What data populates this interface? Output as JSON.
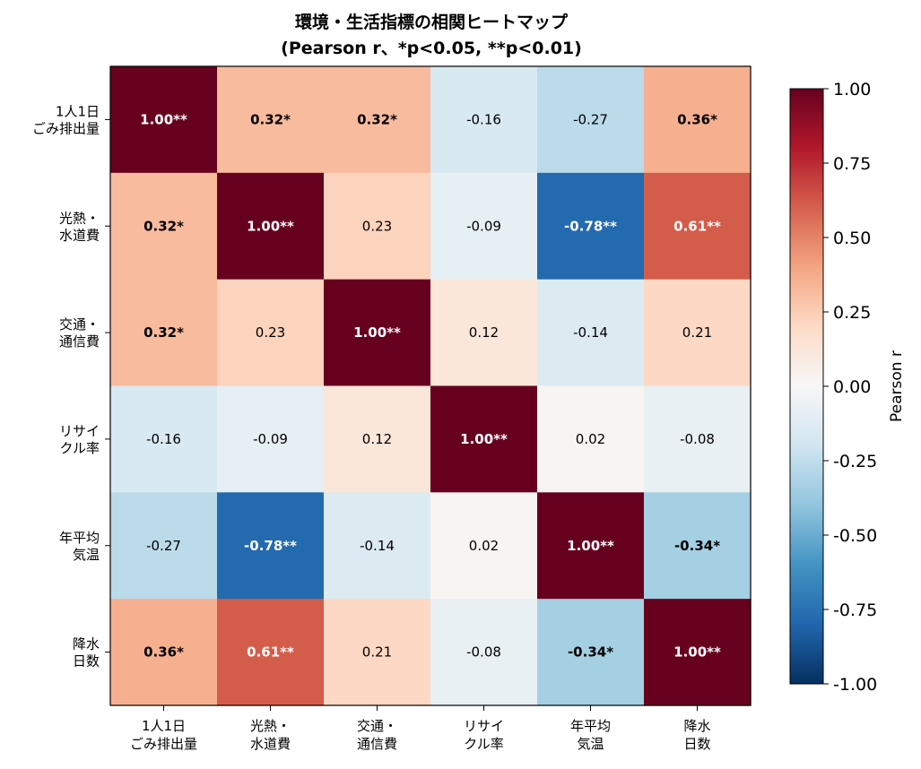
{
  "chart_data": {
    "type": "heatmap",
    "title": "環境・生活指標の相関ヒートマップ",
    "subtitle": "(Pearson r、*p<0.05, **p<0.01)",
    "row_labels": [
      [
        "1人1日",
        "ごみ排出量"
      ],
      [
        "光熱・",
        "水道費"
      ],
      [
        "交通・",
        "通信費"
      ],
      [
        "リサイ",
        "クル率"
      ],
      [
        "年平均",
        "気温"
      ],
      [
        "降水",
        "日数"
      ]
    ],
    "col_labels": [
      [
        "1人1日",
        "ごみ排出量"
      ],
      [
        "光熱・",
        "水道費"
      ],
      [
        "交通・",
        "通信費"
      ],
      [
        "リサイ",
        "クル率"
      ],
      [
        "年平均",
        "気温"
      ],
      [
        "降水",
        "日数"
      ]
    ],
    "values": [
      [
        1.0,
        0.32,
        0.32,
        -0.16,
        -0.27,
        0.36
      ],
      [
        0.32,
        1.0,
        0.23,
        -0.09,
        -0.78,
        0.61
      ],
      [
        0.32,
        0.23,
        1.0,
        0.12,
        -0.14,
        0.21
      ],
      [
        -0.16,
        -0.09,
        0.12,
        1.0,
        0.02,
        -0.08
      ],
      [
        -0.27,
        -0.78,
        -0.14,
        0.02,
        1.0,
        -0.34
      ],
      [
        0.36,
        0.61,
        0.21,
        -0.08,
        -0.34,
        1.0
      ]
    ],
    "cell_labels": [
      [
        "1.00**",
        "0.32*",
        "0.32*",
        "-0.16",
        "-0.27",
        "0.36*"
      ],
      [
        "0.32*",
        "1.00**",
        "0.23",
        "-0.09",
        "-0.78**",
        "0.61**"
      ],
      [
        "0.32*",
        "0.23",
        "1.00**",
        "0.12",
        "-0.14",
        "0.21"
      ],
      [
        "-0.16",
        "-0.09",
        "0.12",
        "1.00**",
        "0.02",
        "-0.08"
      ],
      [
        "-0.27",
        "-0.78**",
        "-0.14",
        "0.02",
        "1.00**",
        "-0.34*"
      ],
      [
        "0.36*",
        "0.61**",
        "0.21",
        "-0.08",
        "-0.34*",
        "1.00**"
      ]
    ],
    "colormap": "RdBu_r",
    "vmin": -1.0,
    "vmax": 1.0,
    "colorbar": {
      "label": "Pearson r",
      "ticks": [
        1.0,
        0.75,
        0.5,
        0.25,
        0.0,
        -0.25,
        -0.5,
        -0.75,
        -1.0
      ],
      "tick_labels": [
        "1.00",
        "0.75",
        "0.50",
        "0.25",
        "0.00",
        "-0.25",
        "-0.50",
        "-0.75",
        "-1.00"
      ]
    }
  }
}
